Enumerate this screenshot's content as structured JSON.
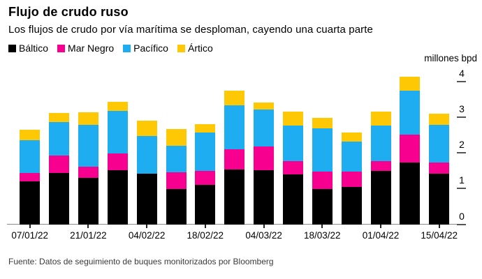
{
  "header": {
    "title": "Flujo de crudo ruso",
    "subtitle": "Los flujos de crudo por vía marítima se desploman, cayendo una cuarta parte"
  },
  "legend": [
    {
      "label": "Báltico",
      "color": "#000000"
    },
    {
      "label": "Mar Negro",
      "color": "#f8008f"
    },
    {
      "label": "Pacífico",
      "color": "#1fadf2"
    },
    {
      "label": "Ártico",
      "color": "#ffc805"
    }
  ],
  "axis": {
    "unit_label": "millones bpd",
    "ytick_labels": [
      "0",
      "1",
      "2",
      "3",
      "4"
    ]
  },
  "footer": {
    "source": "Fuente: Datos de seguimiento de buques monitorizados por Bloomberg"
  },
  "chart_data": {
    "type": "bar",
    "stacked": true,
    "title": "Flujo de crudo ruso",
    "subtitle": "Los flujos de crudo por vía marítima se desploman, cayendo una cuarta parte",
    "ylabel": "millones bpd",
    "ylim": [
      0,
      4
    ],
    "yticks": [
      0,
      1,
      2,
      3,
      4
    ],
    "grid": false,
    "legend_position": "top-left",
    "categories": [
      "07/01/22",
      "",
      "21/01/22",
      "",
      "04/02/22",
      "",
      "18/02/22",
      "",
      "04/03/22",
      "",
      "18/03/22",
      "",
      "01/04/22",
      "",
      "15/04/22"
    ],
    "series": [
      {
        "name": "Báltico",
        "color": "#000000",
        "values": [
          1.22,
          1.45,
          1.3,
          1.53,
          1.43,
          0.99,
          1.11,
          1.54,
          1.53,
          1.41,
          0.99,
          1.06,
          1.5,
          1.74,
          1.42
        ]
      },
      {
        "name": "Mar Negro",
        "color": "#f8008f",
        "values": [
          0.23,
          0.48,
          0.33,
          0.47,
          0.0,
          0.47,
          0.4,
          0.56,
          0.65,
          0.36,
          0.49,
          0.42,
          0.27,
          0.78,
          0.32
        ]
      },
      {
        "name": "Pacífico",
        "color": "#1fadf2",
        "values": [
          0.92,
          0.93,
          1.17,
          1.19,
          1.04,
          0.74,
          1.07,
          1.23,
          1.04,
          1.01,
          1.22,
          0.85,
          1.01,
          1.23,
          1.06
        ]
      },
      {
        "name": "Ártico",
        "color": "#ffc805",
        "values": [
          0.28,
          0.26,
          0.34,
          0.24,
          0.44,
          0.47,
          0.23,
          0.41,
          0.2,
          0.39,
          0.29,
          0.24,
          0.39,
          0.39,
          0.3
        ]
      }
    ],
    "totals": [
      2.65,
      3.12,
      3.14,
      3.43,
      2.91,
      2.67,
      2.81,
      3.74,
      3.42,
      3.17,
      2.99,
      2.57,
      3.17,
      4.14,
      3.1
    ]
  }
}
